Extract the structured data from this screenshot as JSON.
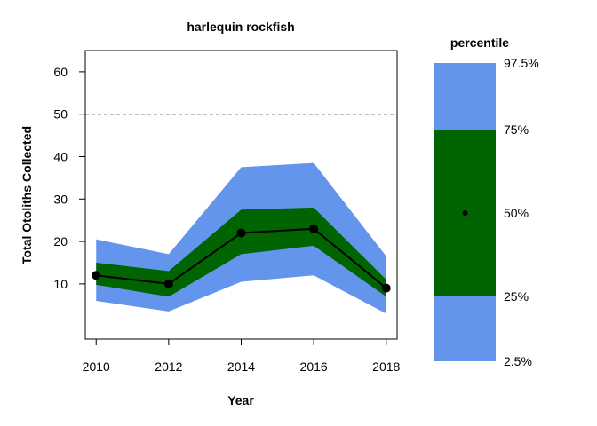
{
  "chart_data": {
    "type": "area",
    "title": "harlequin rockfish",
    "xlabel": "Year",
    "ylabel": "Total Otoliths Collected",
    "xlim": [
      2009.7,
      2018.3
    ],
    "ylim": [
      -3,
      65
    ],
    "x_ticks": [
      "2010",
      "2012",
      "2014",
      "2016",
      "2018"
    ],
    "y_ticks": [
      "10",
      "20",
      "30",
      "40",
      "50",
      "60"
    ],
    "x": [
      2010,
      2012,
      2014,
      2016,
      2018
    ],
    "bands": [
      {
        "name": "2.5-97.5",
        "color": "#6495ED",
        "lower": [
          6,
          3.5,
          10.5,
          12,
          3
        ],
        "upper": [
          20.5,
          17,
          37.5,
          38.5,
          16.5
        ]
      },
      {
        "name": "25-75",
        "color": "#006400",
        "lower": [
          9.8,
          7,
          17,
          19,
          7
        ],
        "upper": [
          15,
          13,
          27.5,
          28,
          11
        ]
      }
    ],
    "series": [
      {
        "values": [
          12,
          10,
          22,
          23,
          9
        ],
        "color": "#000000"
      }
    ],
    "reference_line": {
      "y": 50,
      "style": "dashed"
    },
    "grid": false,
    "legend": {
      "title": "percentile",
      "position": "right",
      "labels": [
        "97.5%",
        "75%",
        "50%",
        "25%",
        "2.5%"
      ],
      "outer_color": "#6495ED",
      "inner_color": "#006400"
    }
  }
}
